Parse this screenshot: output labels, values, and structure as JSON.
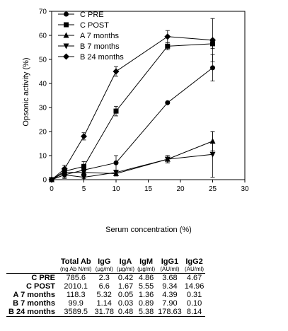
{
  "chart_data": {
    "type": "line",
    "xlabel": "Serum concentration (%)",
    "ylabel": "Opsonic activity (%)",
    "xlim": [
      0,
      30
    ],
    "ylim": [
      0,
      70
    ],
    "xticks": [
      0,
      5,
      10,
      15,
      20,
      25,
      30
    ],
    "yticks": [
      0,
      10,
      20,
      30,
      40,
      50,
      60,
      70
    ],
    "grid": false,
    "legend_position": "top-left",
    "series": [
      {
        "name": "C PRE",
        "marker": "circle",
        "x": [
          0,
          2,
          5,
          10,
          18,
          25
        ],
        "y": [
          0,
          2,
          4,
          7,
          32,
          46.5
        ],
        "err": [
          0,
          1.5,
          1.5,
          3,
          0,
          5.5
        ]
      },
      {
        "name": "C POST",
        "marker": "square",
        "x": [
          0,
          2,
          5,
          10,
          18,
          25
        ],
        "y": [
          0,
          3.5,
          5.5,
          28.5,
          55.5,
          56.5
        ],
        "err": [
          0,
          1.5,
          2,
          2,
          1.5,
          2
        ]
      },
      {
        "name": "A 7 months",
        "marker": "triangle-up",
        "x": [
          0,
          2,
          5,
          10,
          18,
          25
        ],
        "y": [
          0,
          3,
          3,
          2.5,
          8.5,
          16
        ],
        "err": [
          0,
          1,
          1,
          1,
          1.5,
          4
        ]
      },
      {
        "name": "B 7 months",
        "marker": "triangle-down",
        "x": [
          0,
          2,
          5,
          10,
          18,
          25
        ],
        "y": [
          0,
          2,
          1,
          3,
          8.5,
          10.5
        ],
        "err": [
          0,
          1,
          0.5,
          1,
          1.5,
          9.5
        ]
      },
      {
        "name": "B 24 months",
        "marker": "diamond",
        "x": [
          0,
          2,
          5,
          10,
          18,
          25
        ],
        "y": [
          0,
          4.5,
          18,
          45,
          59.5,
          58
        ],
        "err": [
          0,
          1.5,
          1.5,
          2,
          2.5,
          9
        ]
      }
    ]
  },
  "table": {
    "headers": [
      {
        "label": "Total Ab",
        "unit": "(ng Ab N/ml)"
      },
      {
        "label": "IgG",
        "unit": "(µg/ml)"
      },
      {
        "label": "IgA",
        "unit": "(µg/ml)"
      },
      {
        "label": "IgM",
        "unit": "(µg/ml)"
      },
      {
        "label": "IgG1",
        "unit": "(AU/ml)"
      },
      {
        "label": "IgG2",
        "unit": "(AU/ml)"
      }
    ],
    "rows": [
      {
        "label": "C PRE",
        "values": [
          "785.6",
          "2.3",
          "0.42",
          "4.86",
          "3.68",
          "4.67"
        ]
      },
      {
        "label": "C POST",
        "values": [
          "2010.1",
          "6.6",
          "1.67",
          "5.55",
          "9.34",
          "14.96"
        ]
      },
      {
        "label": "A 7 months",
        "values": [
          "118.3",
          "5.32",
          "0.05",
          "1.36",
          "4.39",
          "0.31"
        ]
      },
      {
        "label": "B 7 months",
        "values": [
          "99.9",
          "1.14",
          "0.03",
          "0.89",
          "7.90",
          "0.10"
        ]
      },
      {
        "label": "B 24 months",
        "values": [
          "3589.5",
          "31.78",
          "0.48",
          "5.38",
          "178.63",
          "8.14"
        ]
      }
    ]
  }
}
